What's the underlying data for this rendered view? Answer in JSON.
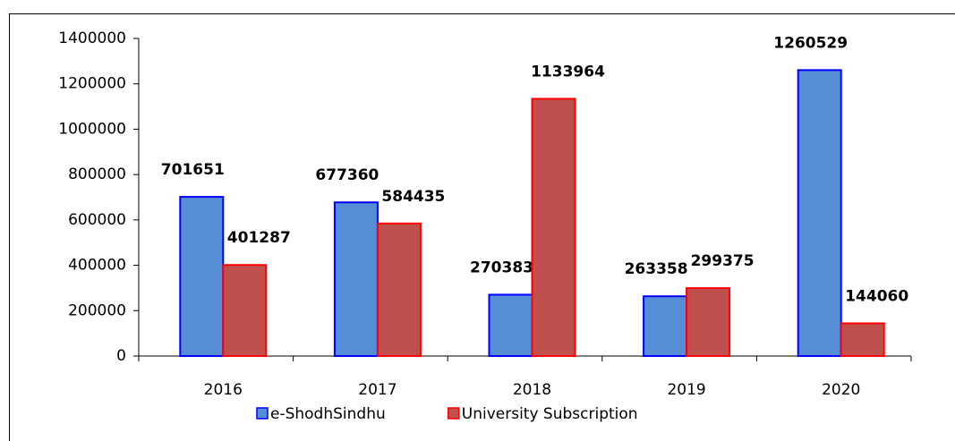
{
  "chart_data": {
    "type": "bar",
    "categories": [
      "2016",
      "2017",
      "2018",
      "2019",
      "2020"
    ],
    "series": [
      {
        "name": "e-ShodhSindhu",
        "color": "#558ed5",
        "stroke": "#0000ff",
        "values": [
          701651,
          677360,
          270383,
          263358,
          1260529
        ]
      },
      {
        "name": "University Subscription",
        "color": "#c0504d",
        "stroke": "#ff0000",
        "values": [
          401287,
          584435,
          1133964,
          299375,
          144060
        ]
      }
    ],
    "ylim": [
      0,
      1400000
    ],
    "yticks": [
      0,
      200000,
      400000,
      600000,
      800000,
      1000000,
      1200000,
      1400000
    ],
    "grid": false,
    "legend": "bottom"
  }
}
